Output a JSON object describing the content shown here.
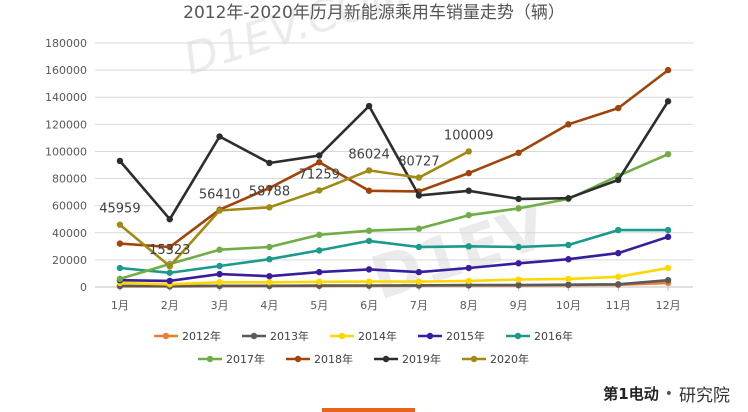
{
  "chart_data": {
    "type": "line",
    "title": "2012年-2020年历月新能源乘用车销量走势（辆）",
    "categories": [
      "1月",
      "2月",
      "3月",
      "4月",
      "5月",
      "6月",
      "7月",
      "8月",
      "9月",
      "10月",
      "11月",
      "12月"
    ],
    "ylim": [
      0,
      180000
    ],
    "yticks": [
      0,
      20000,
      40000,
      60000,
      80000,
      100000,
      120000,
      140000,
      160000,
      180000
    ],
    "ytick_labels": [
      "0",
      "20000",
      "40000",
      "60000",
      "80000",
      "100000",
      "120000",
      "140000",
      "160000",
      "180000"
    ],
    "grid": "horizontal",
    "legend_position": "bottom",
    "series": [
      {
        "name": "2012年",
        "color": "#ed7d31",
        "values": [
          500,
          400,
          600,
          700,
          800,
          900,
          1000,
          1100,
          1200,
          1400,
          1600,
          3000
        ]
      },
      {
        "name": "2013年",
        "color": "#595959",
        "values": [
          800,
          600,
          900,
          900,
          1000,
          1100,
          1200,
          1400,
          1500,
          1700,
          2000,
          5000
        ]
      },
      {
        "name": "2014年",
        "color": "#ffd700",
        "values": [
          3000,
          2000,
          3500,
          3500,
          3800,
          4000,
          4000,
          4500,
          5500,
          6000,
          7500,
          14000
        ]
      },
      {
        "name": "2015年",
        "color": "#3a1d9c",
        "values": [
          5000,
          4500,
          9500,
          8000,
          11000,
          13000,
          11000,
          14000,
          17500,
          20500,
          25000,
          37000
        ]
      },
      {
        "name": "2016年",
        "color": "#1a9a8a",
        "values": [
          14000,
          10500,
          15500,
          20500,
          27000,
          34000,
          29500,
          30000,
          29500,
          31000,
          42000,
          42000
        ]
      },
      {
        "name": "2017年",
        "color": "#70ad47",
        "values": [
          6000,
          17000,
          27500,
          29500,
          38500,
          41500,
          43000,
          53000,
          58000,
          65000,
          82000,
          98000
        ]
      },
      {
        "name": "2018年",
        "color": "#a1440c",
        "values": [
          32000,
          29500,
          57000,
          73000,
          92000,
          71000,
          70500,
          84000,
          99000,
          120000,
          132000,
          160000
        ]
      },
      {
        "name": "2019年",
        "color": "#2d2d2d",
        "values": [
          93000,
          50000,
          111000,
          91500,
          97000,
          133500,
          67500,
          71000,
          65000,
          65500,
          79000,
          137000
        ]
      },
      {
        "name": "2020年",
        "color": "#a08a14",
        "values": [
          45959,
          15323,
          56410,
          58788,
          71259,
          86024,
          80727,
          100009,
          null,
          null,
          null,
          null
        ]
      }
    ],
    "data_labels": [
      {
        "text": "45959",
        "series": "2020年",
        "index": 0
      },
      {
        "text": "15323",
        "series": "2020年",
        "index": 1
      },
      {
        "text": "56410",
        "series": "2020年",
        "index": 2
      },
      {
        "text": "58788",
        "series": "2020年",
        "index": 3
      },
      {
        "text": "71259",
        "series": "2020年",
        "index": 4
      },
      {
        "text": "86024",
        "series": "2020年",
        "index": 5
      },
      {
        "text": "80727",
        "series": "2020年",
        "index": 6
      },
      {
        "text": "100009",
        "series": "2020年",
        "index": 7
      }
    ]
  },
  "footer": {
    "brand_logo_text": "第1电动",
    "brand_separator": "•",
    "brand_suffix": "研究院"
  }
}
